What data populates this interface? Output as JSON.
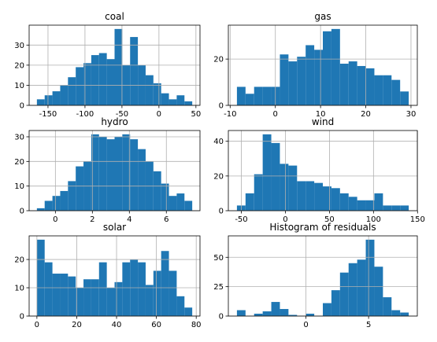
{
  "chart_data": [
    {
      "type": "histogram",
      "title": "coal",
      "color": "#1f77b4",
      "grid": true,
      "bins": [
        -165,
        -154.5,
        -144,
        -133.5,
        -123,
        -112.5,
        -102,
        -91.5,
        -81,
        -70.5,
        -60,
        -49.5,
        -39,
        -28.5,
        -18,
        -7.5,
        3,
        13.5,
        24,
        34.5,
        45
      ],
      "values": [
        3,
        5,
        7,
        10,
        14,
        19,
        21,
        25,
        26,
        23,
        38,
        20,
        34,
        20,
        15,
        11,
        6,
        3,
        5,
        2
      ],
      "xlim": [
        -175.5,
        55.5
      ],
      "ylim": [
        0,
        39.9
      ],
      "xticks": [
        -150,
        -100,
        -50,
        0,
        50
      ],
      "yticks": [
        0,
        10,
        20,
        30
      ]
    },
    {
      "type": "histogram",
      "title": "gas",
      "color": "#1f77b4",
      "grid": true,
      "bins": [
        -8.5,
        -6.6,
        -4.7,
        -2.8,
        -0.9,
        1,
        2.9,
        4.8,
        6.7,
        8.6,
        10.5,
        12.4,
        14.3,
        16.2,
        18.1,
        20,
        21.9,
        23.8,
        25.7,
        27.6,
        29.5
      ],
      "values": [
        8,
        5,
        8,
        8,
        8,
        22,
        19,
        21,
        26,
        24,
        32,
        33,
        18,
        19,
        17,
        16,
        13,
        13,
        11,
        6
      ],
      "xlim": [
        -10.4,
        31.4
      ],
      "ylim": [
        0,
        34.65
      ],
      "xticks": [
        -10,
        0,
        10,
        20,
        30
      ],
      "yticks": [
        0,
        20
      ]
    },
    {
      "type": "histogram",
      "title": "hydro",
      "color": "#1f77b4",
      "grid": true,
      "bins": [
        -1,
        -0.58,
        -0.16,
        0.26,
        0.68,
        1.1,
        1.52,
        1.94,
        2.36,
        2.78,
        3.2,
        3.62,
        4.04,
        4.46,
        4.88,
        5.3,
        5.72,
        6.14,
        6.56,
        6.98,
        7.4
      ],
      "values": [
        1,
        4,
        6,
        8,
        12,
        18,
        20,
        31,
        30,
        29,
        30,
        31,
        29,
        25,
        20,
        16,
        11,
        6,
        7,
        4
      ],
      "xlim": [
        -1.42,
        7.82
      ],
      "ylim": [
        0,
        32.55
      ],
      "xticks": [
        0,
        2,
        4,
        6
      ],
      "yticks": [
        0,
        10,
        20,
        30
      ]
    },
    {
      "type": "histogram",
      "title": "wind",
      "color": "#1f77b4",
      "grid": true,
      "bins": [
        -55,
        -45.25,
        -35.5,
        -25.75,
        -16,
        -6.25,
        3.5,
        13.25,
        23,
        32.75,
        42.5,
        52.25,
        62,
        71.75,
        81.5,
        91.25,
        101,
        110.75,
        120.5,
        130.25,
        140
      ],
      "values": [
        3,
        10,
        21,
        44,
        39,
        27,
        26,
        17,
        17,
        16,
        14,
        13,
        10,
        8,
        6,
        6,
        10,
        3,
        3,
        3
      ],
      "xlim": [
        -64.75,
        149.75
      ],
      "ylim": [
        0,
        46.2
      ],
      "xticks": [
        -50,
        0,
        50,
        100,
        150
      ],
      "yticks": [
        0,
        20,
        40
      ]
    },
    {
      "type": "histogram",
      "title": "solar",
      "color": "#1f77b4",
      "grid": true,
      "bins": [
        0,
        3.9,
        7.8,
        11.7,
        15.6,
        19.5,
        23.4,
        27.3,
        31.2,
        35.1,
        39,
        42.9,
        46.8,
        50.7,
        54.6,
        58.5,
        62.4,
        66.3,
        70.2,
        74.1,
        78
      ],
      "values": [
        27,
        19,
        15,
        15,
        14,
        10,
        13,
        13,
        19,
        10,
        12,
        19,
        20,
        19,
        11,
        16,
        23,
        16,
        7,
        3
      ],
      "xlim": [
        -3.9,
        81.9
      ],
      "ylim": [
        0,
        28.35
      ],
      "xticks": [
        0,
        20,
        40,
        60,
        80
      ],
      "yticks": [
        0,
        10,
        20
      ]
    },
    {
      "type": "histogram",
      "title": "Histogram of residuals",
      "color": "#1f77b4",
      "grid": true,
      "bins": [
        -5.5,
        -4.815,
        -4.13,
        -3.445,
        -2.76,
        -2.075,
        -1.39,
        -0.705,
        -0.02,
        0.665,
        1.35,
        2.035,
        2.72,
        3.405,
        4.09,
        4.775,
        5.46,
        6.145,
        6.83,
        7.515,
        8.2
      ],
      "values": [
        5,
        0,
        2,
        4,
        12,
        6,
        1,
        0,
        2,
        0,
        11,
        22,
        37,
        45,
        48,
        65,
        42,
        16,
        5,
        3
      ],
      "xlim": [
        -6.185,
        8.885
      ],
      "ylim": [
        0,
        68.25
      ],
      "xticks": [
        0,
        5
      ],
      "yticks": [
        0,
        25,
        50
      ]
    }
  ]
}
